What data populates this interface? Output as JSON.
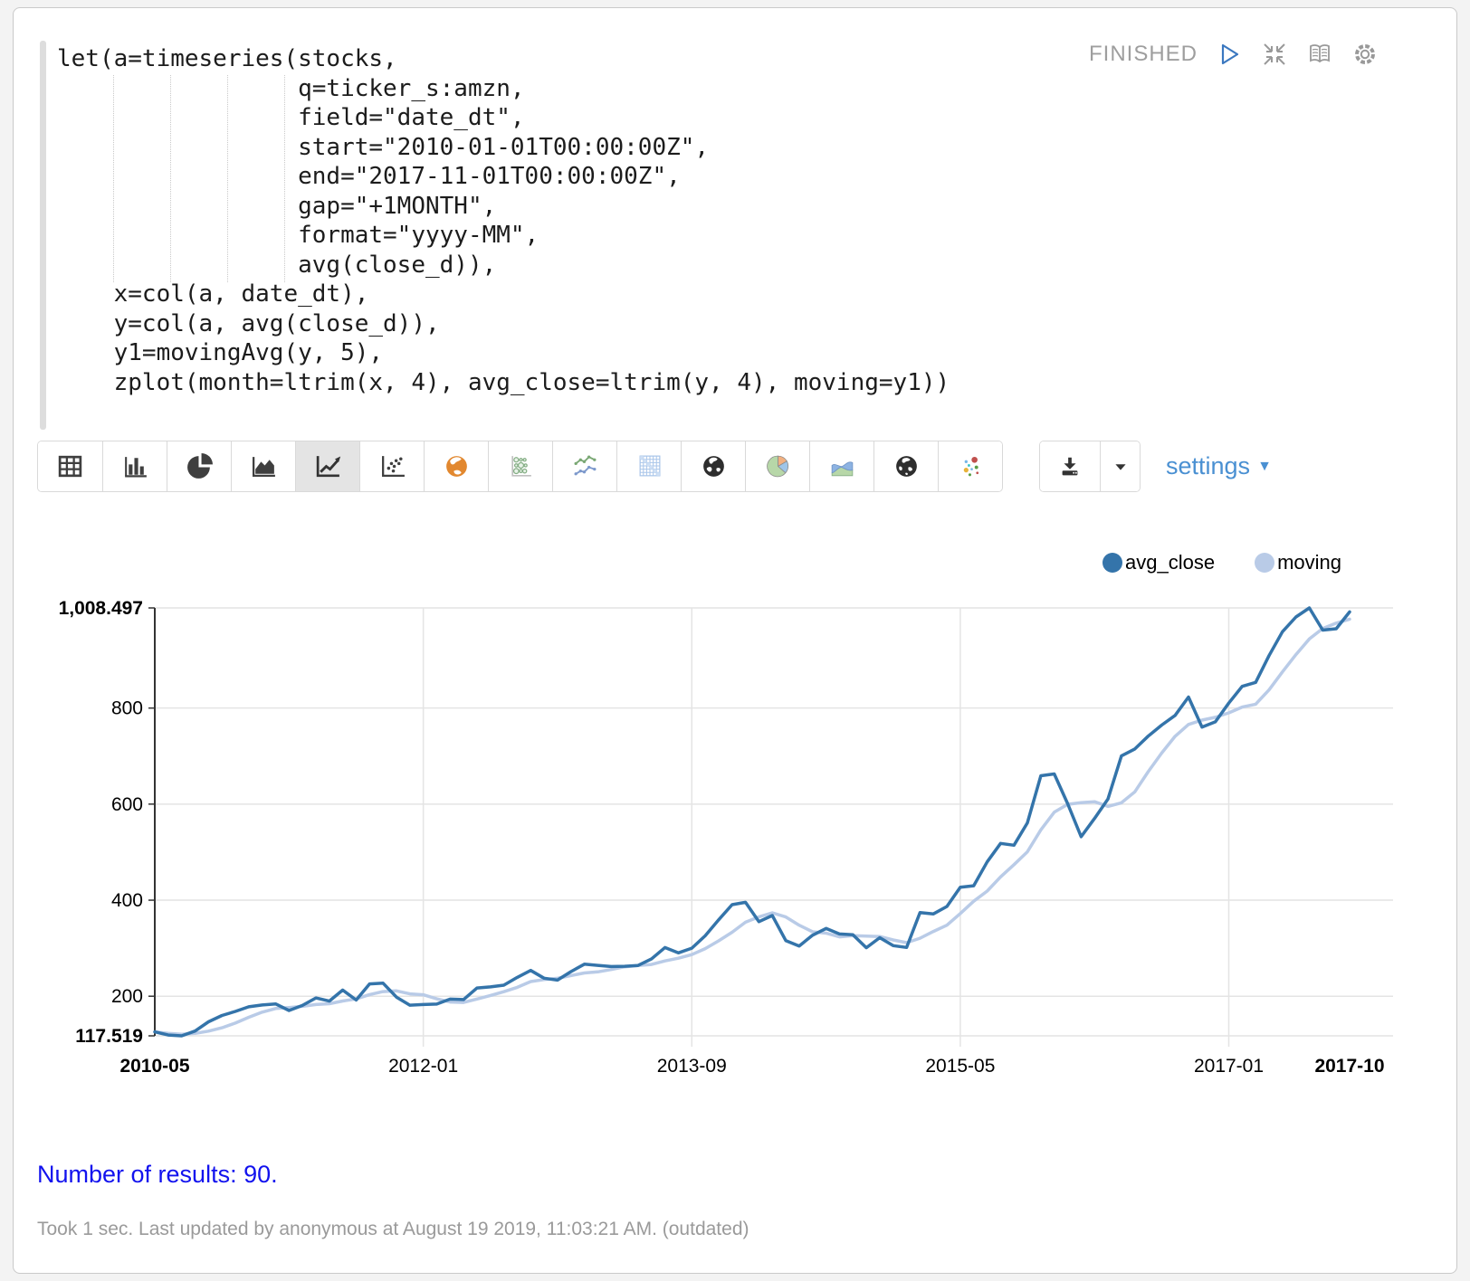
{
  "paragraph": {
    "status": "FINISHED",
    "code_lines": [
      "let(a=timeseries(stocks,",
      "                 q=ticker_s:amzn,",
      "                 field=\"date_dt\",",
      "                 start=\"2010-01-01T00:00:00Z\",",
      "                 end=\"2017-11-01T00:00:00Z\",",
      "                 gap=\"+1MONTH\",",
      "                 format=\"yyyy-MM\",",
      "                 avg(close_d)),",
      "    x=col(a, date_dt),",
      "    y=col(a, avg(close_d)),",
      "    y1=movingAvg(y, 5),",
      "    zplot(month=ltrim(x, 4), avg_close=ltrim(y, 4), moving=y1))"
    ]
  },
  "toolbar": {
    "chart_types": [
      "table",
      "bar-chart",
      "pie-chart",
      "area-chart",
      "line-chart",
      "scatter-chart",
      "map",
      "bubble-chart",
      "multi-line-chart",
      "heatmap",
      "globe",
      "pie-chart-colored",
      "stream-chart",
      "globe-2",
      "scatter-colored"
    ],
    "selected_index": 4,
    "settings_label": "settings"
  },
  "colors": {
    "avg_close": "#3474aa",
    "moving": "#b9cbe7",
    "settings_blue": "#4a90d2",
    "results_blue": "#1212ee",
    "grid": "#e4e4e4",
    "axis": "#333333"
  },
  "chart_data": {
    "type": "line",
    "title": "",
    "xlabel": "",
    "ylabel": "",
    "legend_position": "top-right",
    "grid": true,
    "ylim": [
      117.519,
      1008.497
    ],
    "yticks": [
      200,
      400,
      600,
      800
    ],
    "y_min_label": "117.519",
    "y_max_label": "1,008.497",
    "xticks": [
      "2010-05",
      "2012-01",
      "2013-09",
      "2015-05",
      "2017-01",
      "2017-10"
    ],
    "x": [
      "2010-05",
      "2010-06",
      "2010-07",
      "2010-08",
      "2010-09",
      "2010-10",
      "2010-11",
      "2010-12",
      "2011-01",
      "2011-02",
      "2011-03",
      "2011-04",
      "2011-05",
      "2011-06",
      "2011-07",
      "2011-08",
      "2011-09",
      "2011-10",
      "2011-11",
      "2011-12",
      "2012-01",
      "2012-02",
      "2012-03",
      "2012-04",
      "2012-05",
      "2012-06",
      "2012-07",
      "2012-08",
      "2012-09",
      "2012-10",
      "2012-11",
      "2012-12",
      "2013-01",
      "2013-02",
      "2013-03",
      "2013-04",
      "2013-05",
      "2013-06",
      "2013-07",
      "2013-08",
      "2013-09",
      "2013-10",
      "2013-11",
      "2013-12",
      "2014-01",
      "2014-02",
      "2014-03",
      "2014-04",
      "2014-05",
      "2014-06",
      "2014-07",
      "2014-08",
      "2014-09",
      "2014-10",
      "2014-11",
      "2014-12",
      "2015-01",
      "2015-02",
      "2015-03",
      "2015-04",
      "2015-05",
      "2015-06",
      "2015-07",
      "2015-08",
      "2015-09",
      "2015-10",
      "2015-11",
      "2015-12",
      "2016-01",
      "2016-02",
      "2016-03",
      "2016-04",
      "2016-05",
      "2016-06",
      "2016-07",
      "2016-08",
      "2016-09",
      "2016-10",
      "2016-11",
      "2016-12",
      "2017-01",
      "2017-02",
      "2017-03",
      "2017-04",
      "2017-05",
      "2017-06",
      "2017-07",
      "2017-08",
      "2017-09",
      "2017-10"
    ],
    "series": [
      {
        "name": "avg_close",
        "color": "#3474aa",
        "values": [
          125.9,
          119.3,
          117.519,
          127.5,
          146.8,
          159.9,
          168.4,
          177.9,
          181.7,
          184.1,
          170.2,
          180.9,
          196.4,
          189.8,
          212.9,
          192.2,
          225.7,
          227.3,
          198.1,
          181.4,
          182.6,
          183.7,
          194.0,
          193.1,
          217.2,
          219.5,
          223.0,
          239.2,
          253.7,
          237.6,
          233.5,
          251.2,
          266.7,
          264.3,
          261.8,
          262.4,
          264.0,
          277.9,
          301.4,
          290.2,
          300.0,
          325.9,
          359.1,
          390.7,
          395.5,
          355.2,
          368.1,
          315.8,
          304.6,
          326.9,
          341.1,
          329.7,
          328.1,
          300.9,
          321.9,
          305.3,
          301.6,
          374.3,
          371.5,
          386.9,
          426.8,
          430.1,
          479.8,
          518.2,
          514.5,
          560.9,
          659.0,
          662.8,
          600.9,
          532.2,
          570.1,
          610.4,
          700.3,
          714.9,
          741.6,
          764.6,
          784.8,
          822.9,
          760.5,
          771.4,
          810.3,
          845.1,
          853.4,
          909.2,
          958.9,
          989.7,
          1008.497,
          962.3,
          965.1,
          1000.2
        ]
      },
      {
        "name": "moving",
        "color": "#b9cbe7",
        "values": [
          125.9,
          122.6,
          120.9,
          122.6,
          127.4,
          134.2,
          144.0,
          156.1,
          166.9,
          174.4,
          176.5,
          179.0,
          182.7,
          184.3,
          190.0,
          194.4,
          203.4,
          209.6,
          211.2,
          204.9,
          203.0,
          194.6,
          188.0,
          187.0,
          194.1,
          201.5,
          209.4,
          218.4,
          230.5,
          234.6,
          237.4,
          243.0,
          248.5,
          250.7,
          255.5,
          261.3,
          263.8,
          266.1,
          273.5,
          279.2,
          286.7,
          299.1,
          315.3,
          333.2,
          354.2,
          365.3,
          373.7,
          365.1,
          347.8,
          334.1,
          331.3,
          323.6,
          326.1,
          325.3,
          324.3,
          317.2,
          311.6,
          320.8,
          334.9,
          347.9,
          372.2,
          397.9,
          419.0,
          448.4,
          473.9,
          500.7,
          546.5,
          583.1,
          599.6,
          603.2,
          605.0,
          595.3,
          602.8,
          625.6,
          667.5,
          706.4,
          741.2,
          765.8,
          774.9,
          780.8,
          790.0,
          802.0,
          808.1,
          837.9,
          875.4,
          911.3,
          943.9,
          965.7,
          976.9,
          985.2
        ]
      }
    ]
  },
  "results": {
    "text": "Number of results: 90."
  },
  "status_bar": {
    "text": "Took 1 sec. Last updated by anonymous at August 19 2019, 11:03:21 AM. (outdated)"
  }
}
